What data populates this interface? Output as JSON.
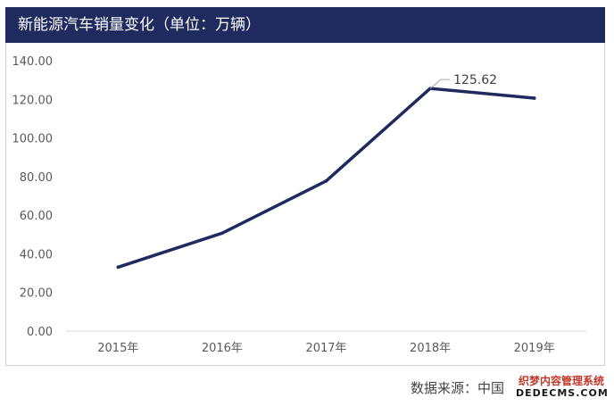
{
  "header": {
    "title": "新能源汽车销量变化（单位：万辆）"
  },
  "footer": {
    "source": "数据来源：中国"
  },
  "watermark": {
    "line1": "织梦内容管理系统",
    "line2": "DEDECMS.COM"
  },
  "colors": {
    "title_bg": "#1f2a5e",
    "line": "#1f2a5e",
    "axis_text": "#595959",
    "gridline": "#d9d9d9"
  },
  "chart_data": {
    "type": "line",
    "categories": [
      "2015年",
      "2016年",
      "2017年",
      "2018年",
      "2019年"
    ],
    "series": [
      {
        "values": [
          33.1,
          50.7,
          77.7,
          125.62,
          120.6
        ]
      }
    ],
    "ylim": [
      0,
      140
    ],
    "yticks": [
      "0.00",
      "20.00",
      "40.00",
      "60.00",
      "80.00",
      "100.00",
      "120.00",
      "140.00"
    ],
    "annotations": [
      {
        "category": "2018年",
        "text": "125.62"
      }
    ],
    "grid": false,
    "legend": "none"
  }
}
